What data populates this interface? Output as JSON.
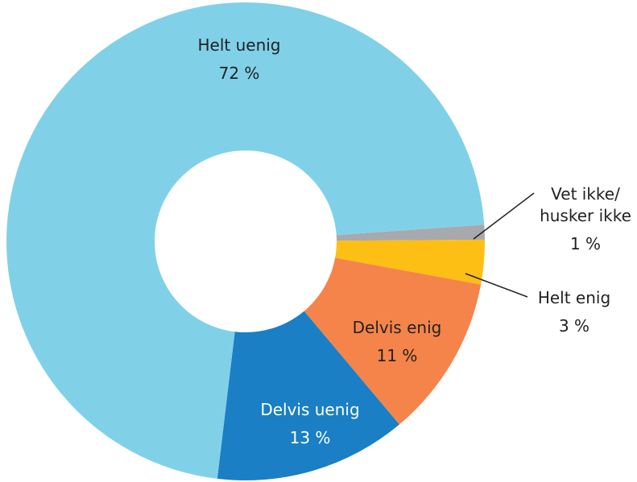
{
  "chart_data": {
    "type": "donut",
    "categories": [
      "Vet ikke/ husker ikke",
      "Helt enig",
      "Delvis enig",
      "Delvis uenig",
      "Helt uenig"
    ],
    "values": [
      1,
      3,
      11,
      13,
      72
    ],
    "value_labels": [
      "1 %",
      "3 %",
      "11 %",
      "13 %",
      "72 %"
    ],
    "colors": [
      "#a8a9ad",
      "#fdbf14",
      "#f5844a",
      "#1a7fc4",
      "#80d1e8"
    ]
  }
}
